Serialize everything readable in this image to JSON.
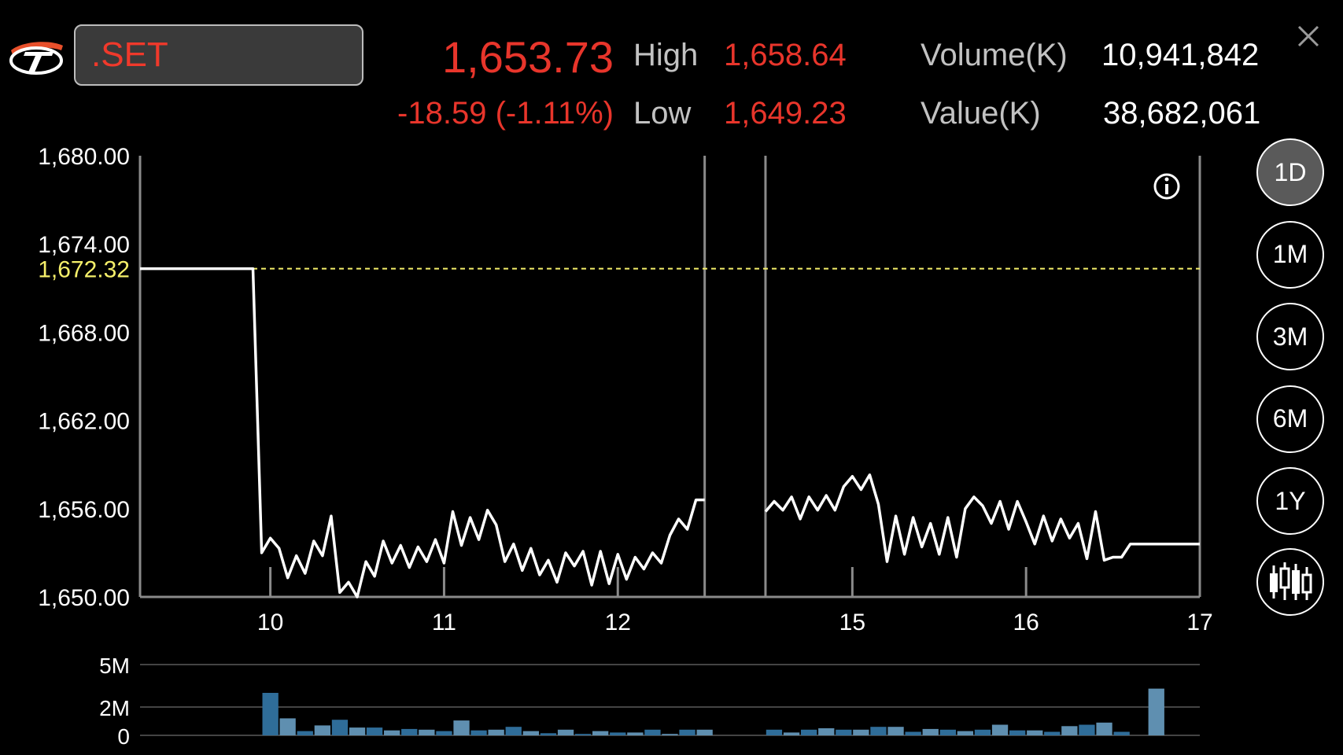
{
  "header": {
    "symbol": ".SET",
    "last_price": "1,653.73",
    "change": "-18.59 (-1.11%)",
    "high_label": "High",
    "high_value": "1,658.64",
    "low_label": "Low",
    "low_value": "1,649.23",
    "volume_label": "Volume(K)",
    "volume_value": "10,941,842",
    "value_label": "Value(K)",
    "value_value": "38,682,061"
  },
  "period_buttons": [
    {
      "label": "1D",
      "active": true
    },
    {
      "label": "1M",
      "active": false
    },
    {
      "label": "3M",
      "active": false
    },
    {
      "label": "6M",
      "active": false
    },
    {
      "label": "1Y",
      "active": false
    }
  ],
  "icons": {
    "logo": "logo-icon",
    "close": "close-icon",
    "info": "info-icon",
    "candlestick": "candlestick-chart-icon"
  },
  "colors": {
    "up_down_red": "#e8352b",
    "prev_close_yellow": "#f5ef6a",
    "volume_dark": "#2f6d99",
    "volume_light": "#5f8fb0"
  },
  "chart_data": [
    {
      "type": "line",
      "ylim": [
        1650,
        1680
      ],
      "y_ticks": [
        "1,680.00",
        "1,674.00",
        "1,668.00",
        "1,662.00",
        "1,656.00",
        "1,650.00"
      ],
      "y_tick_values": [
        1680,
        1674,
        1668,
        1662,
        1656,
        1650
      ],
      "x_ticks": [
        "10",
        "11",
        "12",
        "15",
        "16",
        "17"
      ],
      "xlim": [
        0,
        61
      ],
      "x_tick_positions": [
        7.5,
        17.5,
        27.5,
        41,
        51,
        61
      ],
      "reference_line": {
        "label": "1,672.32",
        "value": 1672.32
      },
      "session_break": [
        32.5,
        36
      ],
      "grid": false,
      "series": [
        {
          "x": [
            0,
            6.5,
            7.0,
            7.5,
            8.0,
            8.5,
            9.0,
            9.5,
            10.0,
            10.5,
            11.0,
            11.5,
            12.0,
            12.5,
            13.0,
            13.5,
            14.0,
            14.5,
            15.0,
            15.5,
            16.0,
            16.5,
            17.0,
            17.5,
            18.0,
            18.5,
            19.0,
            19.5,
            20.0,
            20.5,
            21.0,
            21.5,
            22.0,
            22.5,
            23.0,
            23.5,
            24.0,
            24.5,
            25.0,
            25.5,
            26.0,
            26.5,
            27.0,
            27.5,
            28.0,
            28.5,
            29.0,
            29.5,
            30.0,
            30.5,
            31.0,
            31.5,
            32.0,
            32.5
          ],
          "y": [
            1672.32,
            1672.32,
            1653.0,
            1654.0,
            1653.3,
            1651.3,
            1652.8,
            1651.6,
            1653.8,
            1652.8,
            1655.5,
            1650.3,
            1651.0,
            1650.0,
            1652.4,
            1651.4,
            1653.8,
            1652.3,
            1653.5,
            1652.0,
            1653.4,
            1652.4,
            1653.9,
            1652.3,
            1655.8,
            1653.5,
            1655.4,
            1653.9,
            1655.9,
            1654.9,
            1652.4,
            1653.6,
            1651.8,
            1653.3,
            1651.5,
            1652.5,
            1651.0,
            1653.0,
            1652.1,
            1653.1,
            1650.8,
            1653.1,
            1650.9,
            1652.9,
            1651.2,
            1652.7,
            1651.9,
            1653.0,
            1652.3,
            1654.2,
            1655.3,
            1654.6,
            1656.6,
            1656.6
          ]
        },
        {
          "x": [
            36.0,
            36.5,
            37.0,
            37.5,
            38.0,
            38.5,
            39.0,
            39.5,
            40.0,
            40.5,
            41.0,
            41.5,
            42.0,
            42.5,
            43.0,
            43.5,
            44.0,
            44.5,
            45.0,
            45.5,
            46.0,
            46.5,
            47.0,
            47.5,
            48.0,
            48.5,
            49.0,
            49.5,
            50.0,
            50.5,
            51.0,
            51.5,
            52.0,
            52.5,
            53.0,
            53.5,
            54.0,
            54.5,
            55.0,
            55.5,
            56.0,
            56.5,
            57.0,
            57.5,
            58.0,
            58.5,
            59.0,
            59.5,
            60.0,
            61.0
          ],
          "y": [
            1655.8,
            1656.5,
            1655.9,
            1656.8,
            1655.3,
            1656.8,
            1655.9,
            1656.9,
            1655.9,
            1657.5,
            1658.2,
            1657.3,
            1658.3,
            1656.3,
            1652.4,
            1655.5,
            1652.9,
            1655.4,
            1653.4,
            1655.0,
            1652.9,
            1655.4,
            1652.7,
            1656.0,
            1656.8,
            1656.2,
            1655.0,
            1656.5,
            1654.6,
            1656.5,
            1655.1,
            1653.6,
            1655.5,
            1653.8,
            1655.3,
            1654.0,
            1655.0,
            1652.6,
            1655.8,
            1652.5,
            1652.7,
            1652.7,
            1653.6,
            1653.6,
            1653.6,
            1653.6,
            1653.6,
            1653.6,
            1653.6,
            1653.6
          ]
        }
      ]
    },
    {
      "type": "bar",
      "ylim": [
        0,
        5
      ],
      "y_ticks": [
        "5M",
        "2M",
        "0"
      ],
      "y_tick_values": [
        5,
        2,
        0
      ],
      "x": [
        7.5,
        8.5,
        9.5,
        10.5,
        11.5,
        12.5,
        13.5,
        14.5,
        15.5,
        16.5,
        17.5,
        18.5,
        19.5,
        20.5,
        21.5,
        22.5,
        23.5,
        24.5,
        25.5,
        26.5,
        27.5,
        28.5,
        29.5,
        30.5,
        31.5,
        32.5,
        36.5,
        37.5,
        38.5,
        39.5,
        40.5,
        41.5,
        42.5,
        43.5,
        44.5,
        45.5,
        46.5,
        47.5,
        48.5,
        49.5,
        50.5,
        51.5,
        52.5,
        53.5,
        54.5,
        55.5,
        56.5,
        58.5
      ],
      "values": [
        3.0,
        1.2,
        0.3,
        0.7,
        1.1,
        0.55,
        0.55,
        0.35,
        0.45,
        0.4,
        0.3,
        1.05,
        0.35,
        0.4,
        0.6,
        0.3,
        0.15,
        0.4,
        0.1,
        0.3,
        0.2,
        0.2,
        0.4,
        0.1,
        0.4,
        0.4,
        0.4,
        0.2,
        0.4,
        0.5,
        0.4,
        0.4,
        0.6,
        0.6,
        0.25,
        0.45,
        0.4,
        0.3,
        0.4,
        0.75,
        0.35,
        0.35,
        0.25,
        0.65,
        0.75,
        0.9,
        0.25,
        3.3
      ],
      "shade": [
        "dark",
        "light",
        "dark",
        "light",
        "dark",
        "light",
        "dark",
        "light",
        "dark",
        "light",
        "dark",
        "light",
        "dark",
        "light",
        "dark",
        "light",
        "dark",
        "light",
        "dark",
        "light",
        "dark",
        "light",
        "dark",
        "light",
        "dark",
        "light",
        "dark",
        "light",
        "dark",
        "light",
        "dark",
        "light",
        "dark",
        "light",
        "dark",
        "light",
        "dark",
        "light",
        "dark",
        "light",
        "dark",
        "light",
        "dark",
        "light",
        "dark",
        "light",
        "dark",
        "light"
      ]
    }
  ]
}
